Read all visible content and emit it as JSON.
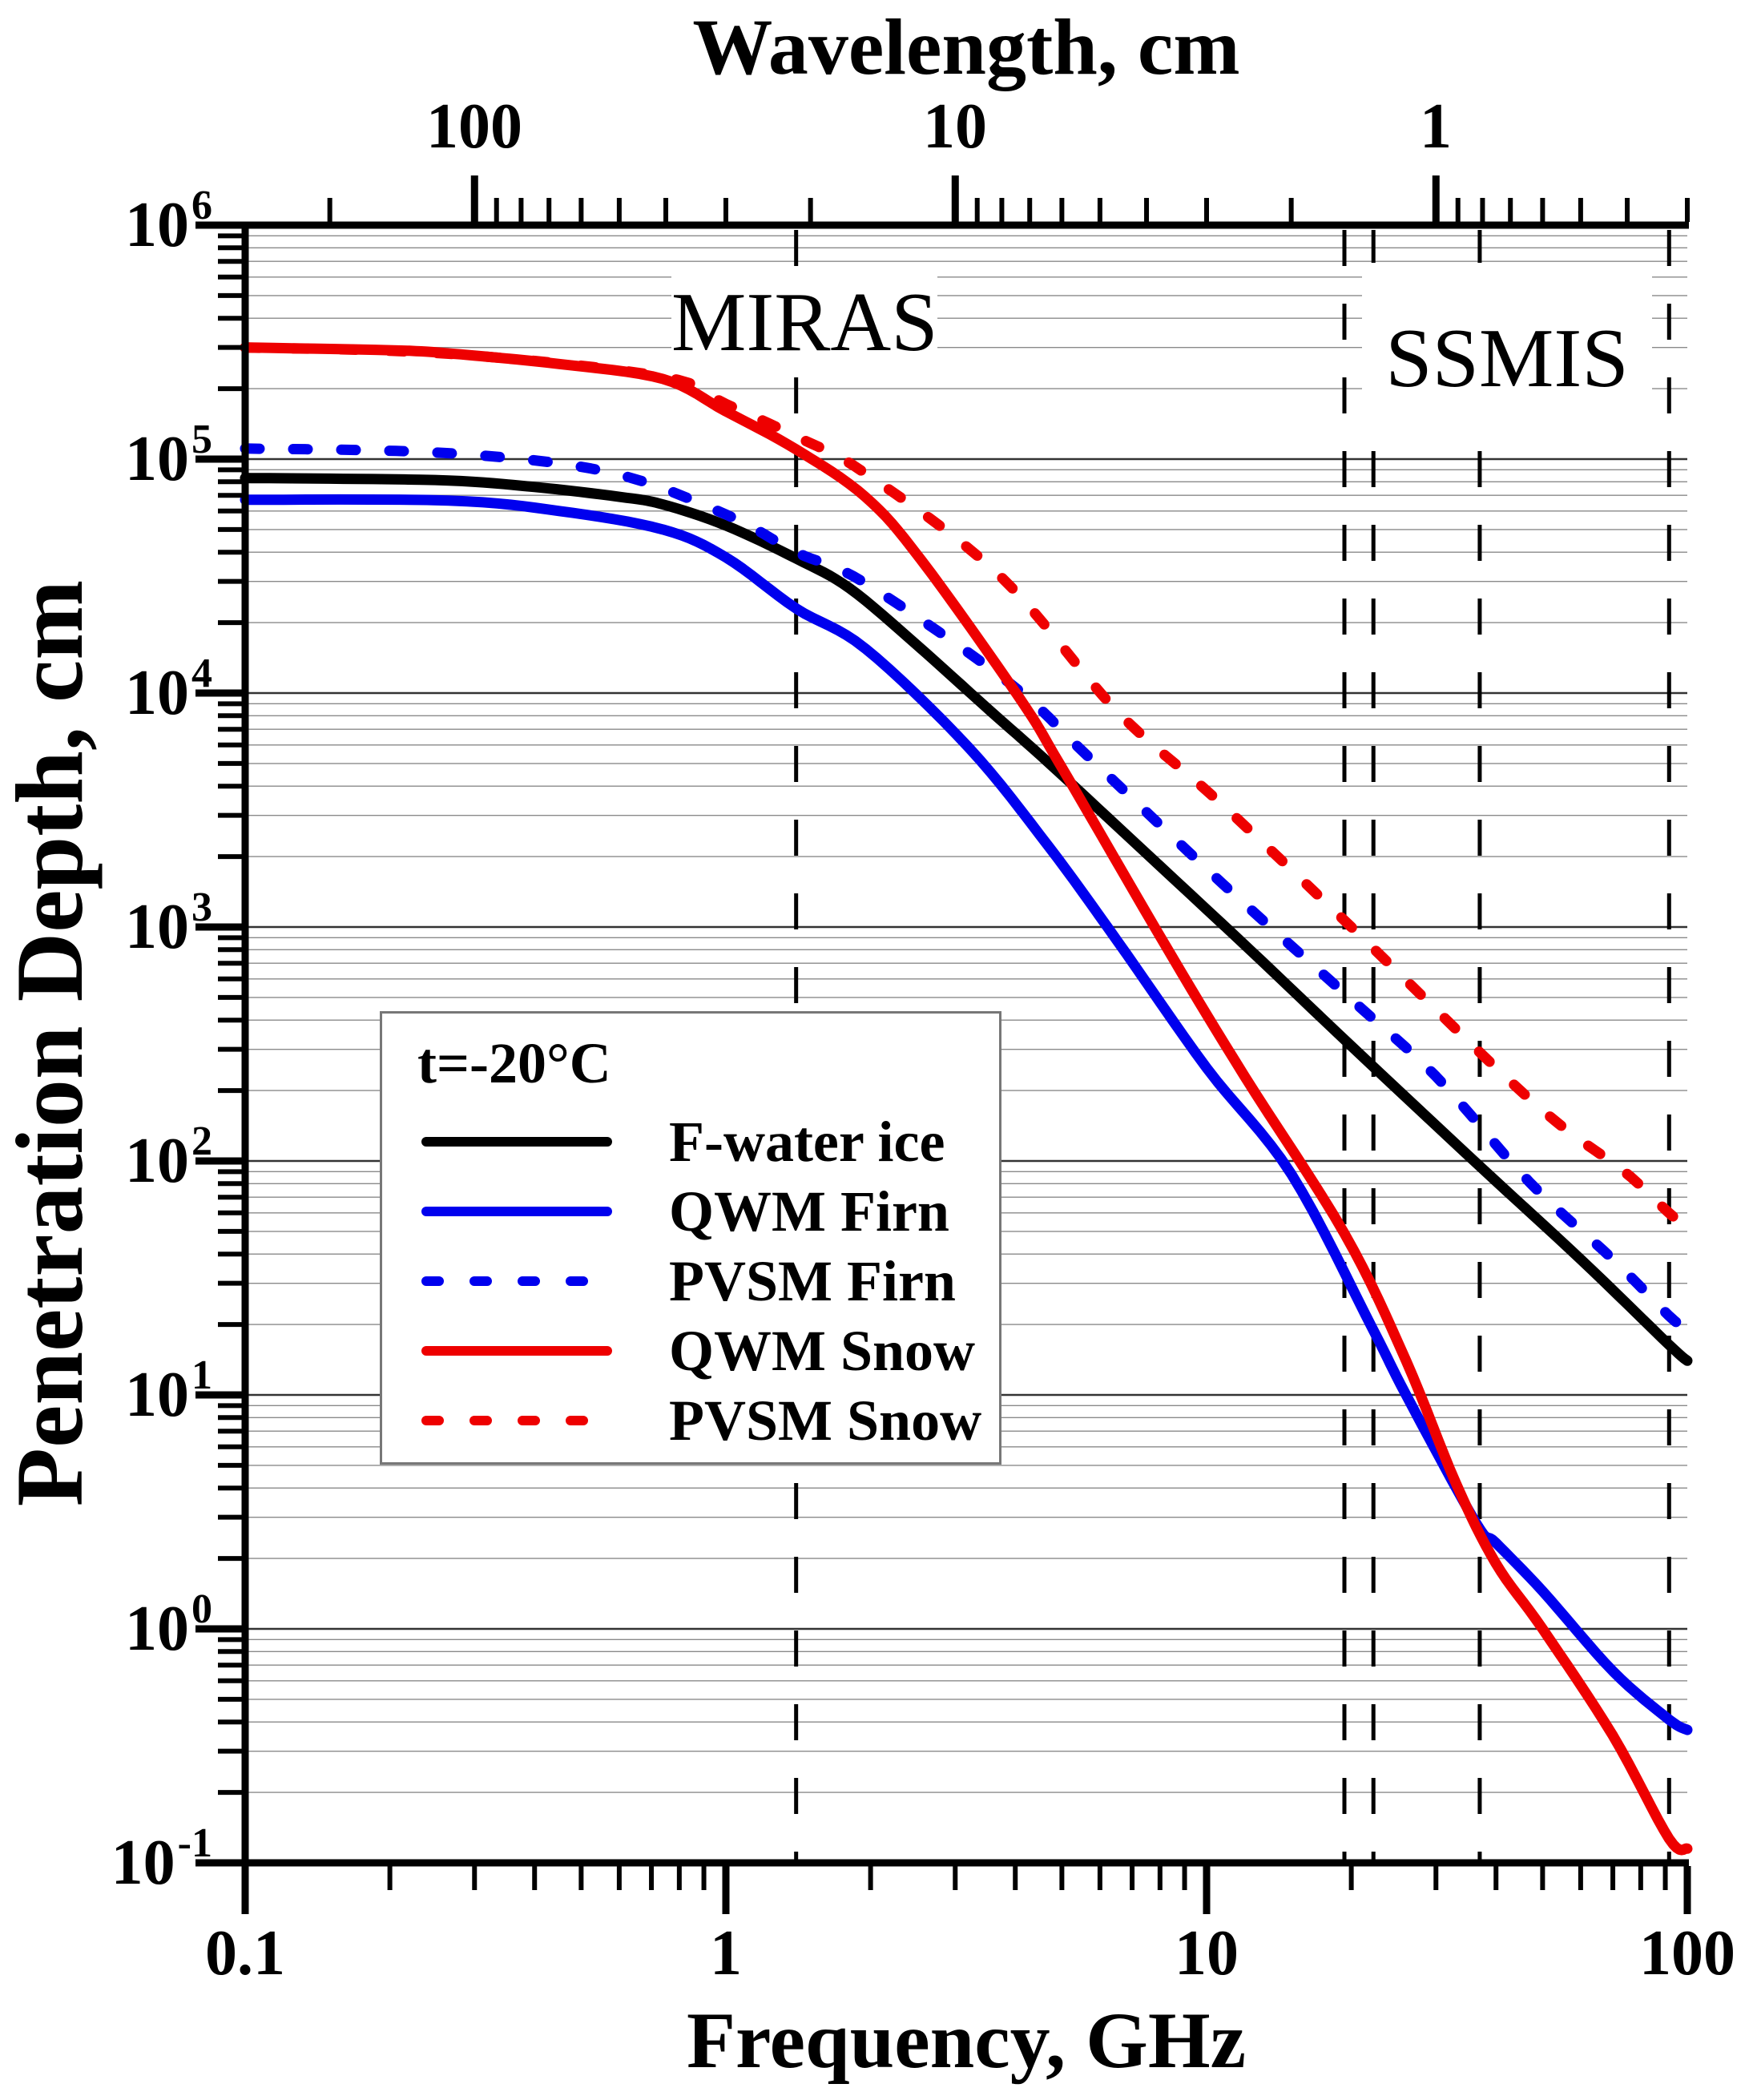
{
  "annotations": {
    "miras": "MIRAS",
    "ssmis": "SSMIS"
  },
  "axes": {
    "top": {
      "title": "Wavelength, cm",
      "ticks": [
        "100",
        "10",
        "1"
      ],
      "tick_values": [
        100,
        10,
        1
      ]
    },
    "bottom": {
      "title": "Frequency, GHz",
      "ticks": [
        "0.1",
        "1",
        "10",
        "100"
      ],
      "tick_values": [
        0.1,
        1,
        10,
        100
      ]
    },
    "left": {
      "title": "Penetration Depth, cm",
      "ticks": [
        {
          "base": "10",
          "exp": "6"
        },
        {
          "base": "10",
          "exp": "5"
        },
        {
          "base": "10",
          "exp": "4"
        },
        {
          "base": "10",
          "exp": "3"
        },
        {
          "base": "10",
          "exp": "2"
        },
        {
          "base": "10",
          "exp": "1"
        },
        {
          "base": "10",
          "exp": "0"
        },
        {
          "base": "10",
          "exp": "-1"
        }
      ],
      "tick_values": [
        1000000,
        100000,
        10000,
        1000,
        100,
        10,
        1,
        0.1
      ]
    }
  },
  "legend": {
    "title": "t=-20°C",
    "entries": [
      {
        "label": "F-water ice",
        "color": "#000000",
        "dashed": false
      },
      {
        "label": "QWM Firn",
        "color": "#0000ee",
        "dashed": false
      },
      {
        "label": "PVSM Firn",
        "color": "#0000ee",
        "dashed": true
      },
      {
        "label": "QWM Snow",
        "color": "#ee0000",
        "dashed": false
      },
      {
        "label": "PVSM Snow",
        "color": "#ee0000",
        "dashed": true
      }
    ]
  },
  "chart_data": {
    "type": "line",
    "title": "",
    "xlabel": "Frequency, GHz",
    "ylabel": "Penetration Depth, cm",
    "x2label": "Wavelength, cm",
    "xscale": "log",
    "yscale": "log",
    "xlim": [
      0.1,
      100
    ],
    "ylim": [
      0.1,
      1000000
    ],
    "grid": "horizontal-log",
    "legend_position": "center-left",
    "guides_ghz": {
      "miras": [
        1.4
      ],
      "ssmis": [
        19.35,
        22.235,
        37,
        91.655
      ]
    },
    "wavelength_major_cm": [
      100,
      10,
      1
    ],
    "wavelength_minor_cm": [
      200,
      90,
      80,
      70,
      60,
      50,
      40,
      30,
      20,
      9,
      8,
      7,
      6,
      5,
      4,
      3,
      2,
      0.9,
      0.8,
      0.7,
      0.6,
      0.5,
      0.4,
      0.3
    ],
    "freq_minor_ghz": [
      0.2,
      0.3,
      0.4,
      0.5,
      0.6,
      0.7,
      0.8,
      0.9,
      2,
      3,
      4,
      5,
      6,
      7,
      8,
      9,
      20,
      30,
      40,
      50,
      60,
      70,
      80,
      90
    ],
    "series": [
      {
        "name": "F-water ice",
        "color": "#000000",
        "style": "solid",
        "points": [
          [
            0.1,
            83000
          ],
          [
            0.15,
            82500
          ],
          [
            0.265,
            81000
          ],
          [
            0.4,
            76000
          ],
          [
            0.6,
            69000
          ],
          [
            0.74,
            64000
          ],
          [
            1.0,
            52000
          ],
          [
            1.4,
            37600
          ],
          [
            1.81,
            28000
          ],
          [
            2.5,
            16000
          ],
          [
            3.5,
            8600
          ],
          [
            4.71,
            5000
          ],
          [
            7,
            2350
          ],
          [
            12.3,
            800
          ],
          [
            20,
            310
          ],
          [
            37,
            95
          ],
          [
            60,
            38
          ],
          [
            91.6,
            16.4
          ],
          [
            100,
            14
          ]
        ]
      },
      {
        "name": "QWM Firn",
        "color": "#0000ee",
        "style": "solid",
        "points": [
          [
            0.1,
            67000
          ],
          [
            0.265,
            66500
          ],
          [
            0.45,
            60000
          ],
          [
            0.74,
            50000
          ],
          [
            1.0,
            38000
          ],
          [
            1.4,
            23000
          ],
          [
            1.95,
            15500
          ],
          [
            3.2,
            5850
          ],
          [
            4.7,
            2200
          ],
          [
            6.5,
            880
          ],
          [
            10,
            250
          ],
          [
            15,
            88
          ],
          [
            22.2,
            19
          ],
          [
            26,
            10
          ],
          [
            36.3,
            2.85
          ],
          [
            40,
            2.33
          ],
          [
            50,
            1.45
          ],
          [
            70,
            0.66
          ],
          [
            91.6,
            0.41
          ],
          [
            100,
            0.37
          ]
        ]
      },
      {
        "name": "PVSM Firn",
        "color": "#0000ee",
        "style": "dashed",
        "points": [
          [
            0.1,
            111000
          ],
          [
            0.265,
            106000
          ],
          [
            0.57,
            88000
          ],
          [
            1.0,
            58000
          ],
          [
            1.4,
            40000
          ],
          [
            1.95,
            29500
          ],
          [
            3.9,
            11000
          ],
          [
            5.7,
            5300
          ],
          [
            10.8,
            1530
          ],
          [
            20,
            490
          ],
          [
            30,
            230
          ],
          [
            47,
            81
          ],
          [
            70,
            38
          ],
          [
            91.6,
            21.8
          ],
          [
            100,
            19
          ]
        ]
      },
      {
        "name": "QWM Snow",
        "color": "#ee0000",
        "style": "solid",
        "points": [
          [
            0.1,
            300000
          ],
          [
            0.2,
            292000
          ],
          [
            0.265,
            283000
          ],
          [
            0.45,
            255000
          ],
          [
            0.74,
            220000
          ],
          [
            1.0,
            160000
          ],
          [
            1.4,
            110000
          ],
          [
            1.95,
            69000
          ],
          [
            2.55,
            37000
          ],
          [
            4.07,
            9600
          ],
          [
            5.0,
            4800
          ],
          [
            8.4,
            770
          ],
          [
            12,
            230
          ],
          [
            19.35,
            49
          ],
          [
            26,
            14
          ],
          [
            33,
            4.2
          ],
          [
            40,
            1.9
          ],
          [
            50,
            1.0
          ],
          [
            70,
            0.35
          ],
          [
            91.6,
            0.127
          ],
          [
            100,
            0.115
          ]
        ]
      },
      {
        "name": "PVSM Snow",
        "color": "#ee0000",
        "style": "dashed",
        "points": [
          [
            0.1,
            300000
          ],
          [
            0.265,
            282000
          ],
          [
            0.74,
            225000
          ],
          [
            1.0,
            172000
          ],
          [
            1.4,
            125000
          ],
          [
            1.95,
            87000
          ],
          [
            3.7,
            32000
          ],
          [
            6.5,
            8400
          ],
          [
            10.5,
            3500
          ],
          [
            20,
            1000
          ],
          [
            40,
            250
          ],
          [
            55,
            140
          ],
          [
            74,
            90
          ],
          [
            91.6,
            60
          ],
          [
            100,
            52
          ]
        ]
      }
    ]
  }
}
